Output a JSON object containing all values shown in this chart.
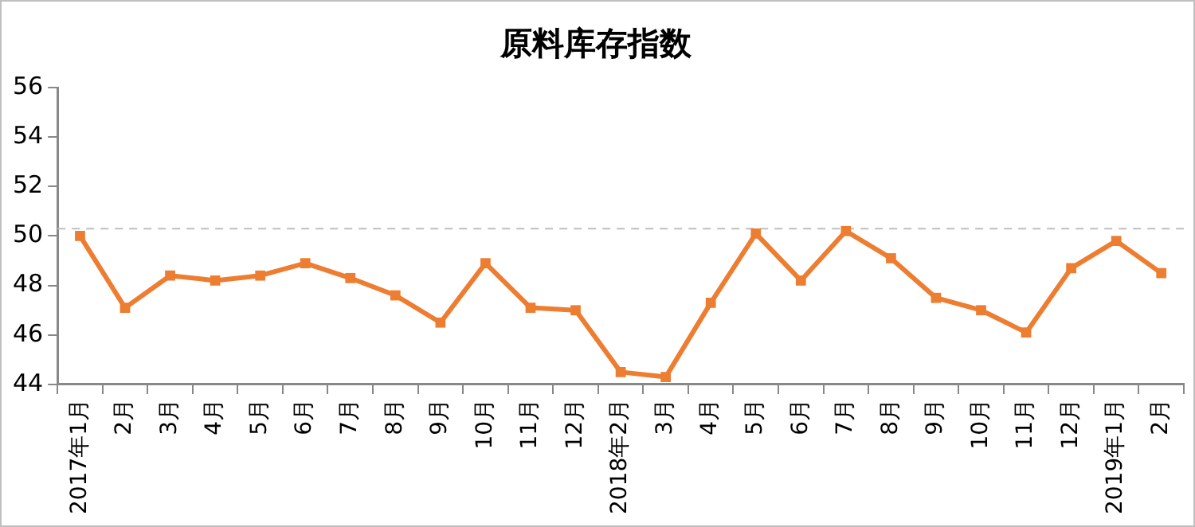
{
  "chart_data": {
    "type": "line",
    "title": "原料库存指数",
    "categories": [
      "2017年1月",
      "2月",
      "3月",
      "4月",
      "5月",
      "6月",
      "7月",
      "8月",
      "9月",
      "10月",
      "11月",
      "12月",
      "2018年2月",
      "3月",
      "4月",
      "5月",
      "6月",
      "7月",
      "8月",
      "9月",
      "10月",
      "11月",
      "12月",
      "2019年1月",
      "2月"
    ],
    "series": [
      {
        "color": "#ed7d31",
        "values": [
          50.0,
          47.1,
          48.4,
          48.2,
          48.4,
          48.9,
          48.3,
          47.6,
          46.5,
          48.9,
          47.1,
          47.0,
          44.5,
          44.3,
          47.3,
          50.1,
          48.2,
          50.2,
          49.1,
          47.5,
          47.0,
          46.1,
          48.7,
          49.8,
          48.5
        ]
      }
    ],
    "ylim": [
      44,
      56
    ],
    "yticks": [
      44,
      46,
      48,
      50,
      52,
      54,
      56
    ],
    "ref_lines": [
      {
        "axis": "y",
        "value": 50.3,
        "color": "#bfbfbf",
        "line_style": "dashed"
      }
    ],
    "grid": false,
    "legend": false,
    "marker": "square",
    "line_style": "solid"
  }
}
